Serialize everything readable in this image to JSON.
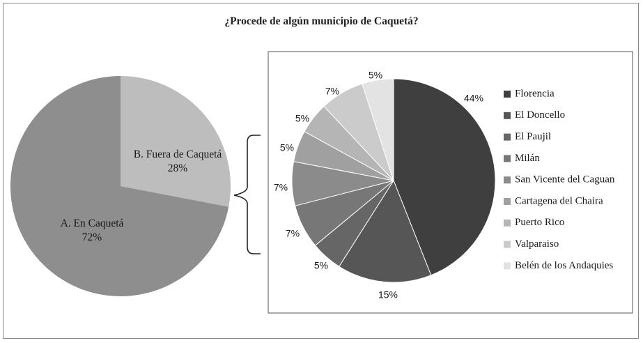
{
  "title": "¿Procede de algún municipio de Caquetá?",
  "chart_data": [
    {
      "type": "pie",
      "title": "¿Procede de algún municipio de Caquetá?",
      "slices": [
        {
          "label": "B. Fuera de Caquetá",
          "value": 28,
          "display": "28%",
          "color": "#bdbdbd"
        },
        {
          "label": "A. En Caquetá",
          "value": 72,
          "display": "72%",
          "color": "#8e8e8e"
        }
      ]
    },
    {
      "type": "pie",
      "legend_position": "right",
      "slices": [
        {
          "label": "Florencia",
          "value": 44,
          "display": "44%",
          "color": "#3f3f3f"
        },
        {
          "label": "El Doncello",
          "value": 15,
          "display": "15%",
          "color": "#565656"
        },
        {
          "label": "El Paujil",
          "value": 5,
          "display": "5%",
          "color": "#666666"
        },
        {
          "label": "Milán",
          "value": 7,
          "display": "7%",
          "color": "#777777"
        },
        {
          "label": "San Vicente del Caguan",
          "value": 7,
          "display": "7%",
          "color": "#8b8b8b"
        },
        {
          "label": "Cartagena del Chaira",
          "value": 5,
          "display": "5%",
          "color": "#a0a0a0"
        },
        {
          "label": "Puerto Rico",
          "value": 5,
          "display": "5%",
          "color": "#b5b5b5"
        },
        {
          "label": "Valparaiso",
          "value": 7,
          "display": "7%",
          "color": "#cbcbcb"
        },
        {
          "label": "Belén de los Andaquies",
          "value": 5,
          "display": "5%",
          "color": "#e3e3e3"
        }
      ]
    }
  ]
}
